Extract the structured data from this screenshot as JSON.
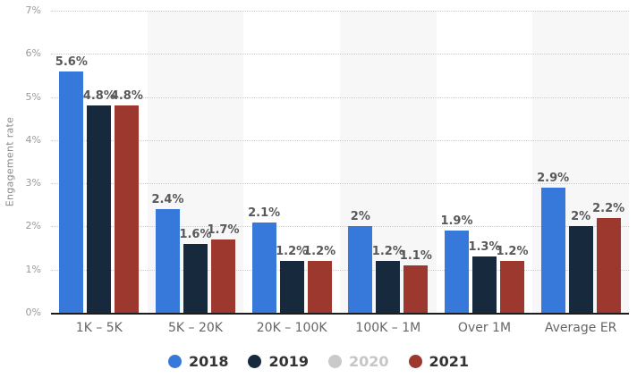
{
  "chart_data": {
    "type": "bar",
    "title": "",
    "xlabel": "",
    "ylabel": "Engagement rate",
    "ylim": [
      0,
      7
    ],
    "yticks": [
      "0%",
      "1%",
      "2%",
      "3%",
      "4%",
      "5%",
      "6%",
      "7%"
    ],
    "grid": "horizontal-dotted",
    "legend_position": "bottom-center",
    "plot_background": {
      "default": "#ffffff",
      "alternate_band": "#f7f7f7"
    },
    "categories": [
      "1K – 5K",
      "5K – 20K",
      "20K – 100K",
      "100K – 1M",
      "Over 1M",
      "Average ER"
    ],
    "series": [
      {
        "name": "2018",
        "color": "#3679db",
        "visible": true,
        "values": [
          5.6,
          2.4,
          2.1,
          2.0,
          1.9,
          2.9
        ],
        "labels": [
          "5.6%",
          "2.4%",
          "2.1%",
          "2%",
          "1.9%",
          "2.9%"
        ]
      },
      {
        "name": "2019",
        "color": "#16293d",
        "visible": true,
        "values": [
          4.8,
          1.6,
          1.2,
          1.2,
          1.3,
          2.0
        ],
        "labels": [
          "4.8%",
          "1.6%",
          "1.2%",
          "1.2%",
          "1.3%",
          "2%"
        ]
      },
      {
        "name": "2020",
        "color": "#c9c9c9",
        "visible": false,
        "values": [],
        "labels": []
      },
      {
        "name": "2021",
        "color": "#9d382f",
        "visible": true,
        "values": [
          4.8,
          1.7,
          1.2,
          1.1,
          1.2,
          2.2
        ],
        "labels": [
          "4.8%",
          "1.7%",
          "1.2%",
          "1.1%",
          "1.2%",
          "2.2%"
        ]
      }
    ],
    "styles": {
      "axis_line_color": "#1c1c1c",
      "gridline_color": "#cccccc",
      "tick_label_color": "#999999",
      "category_label_color": "#666666",
      "value_label_color": "#58585a",
      "legend_label_color": "#333333",
      "legend_disabled_color": "#c6c6c6"
    }
  }
}
